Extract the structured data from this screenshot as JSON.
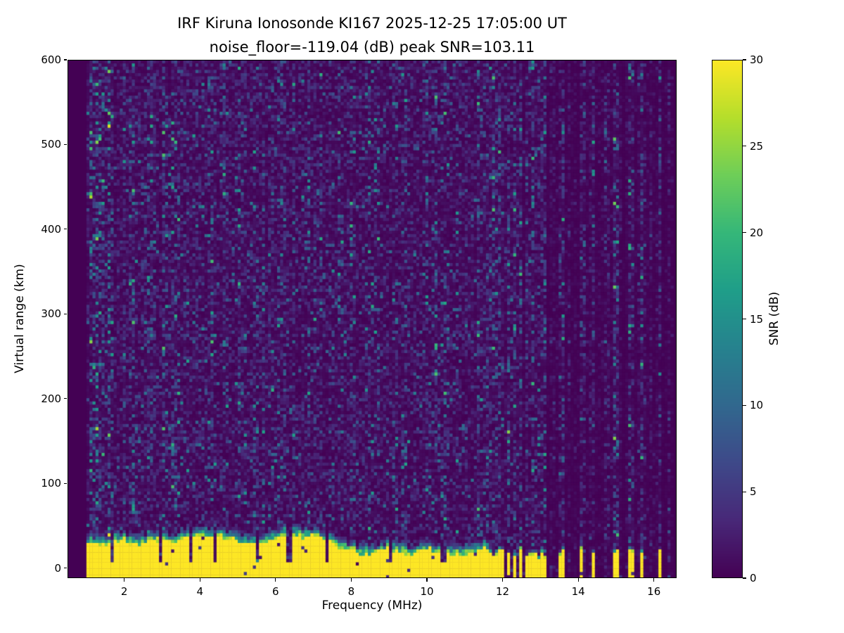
{
  "chart_data": {
    "type": "heatmap",
    "title": "IRF Kiruna Ionosonde KI167 2025-12-25 17:05:00  UT",
    "subtitle": "noise_floor=-119.04 (dB) peak SNR=103.11",
    "station": "IRF Kiruna Ionosonde KI167",
    "timestamp_ut": "2025-12-25 17:05:00 UT",
    "noise_floor_db": -119.04,
    "peak_snr_db": 103.11,
    "xlabel": "Frequency (MHz)",
    "ylabel": "Virtual range (km)",
    "xlim": [
      0.5,
      16.6
    ],
    "ylim": [
      -12,
      600
    ],
    "x_ticks": [
      2,
      4,
      6,
      8,
      10,
      12,
      14,
      16
    ],
    "y_ticks": [
      0,
      100,
      200,
      300,
      400,
      500,
      600
    ],
    "grid": false,
    "colorbar": {
      "label": "SNR (dB)",
      "ticks": [
        0,
        5,
        10,
        15,
        20,
        25,
        30
      ],
      "vmin": 0,
      "vmax": 30
    },
    "colormap": "viridis",
    "colormap_stops": [
      "#440154",
      "#482878",
      "#3e4989",
      "#31688e",
      "#26828e",
      "#1f9e89",
      "#35b779",
      "#6ece58",
      "#b5de2b",
      "#fde725"
    ],
    "background_color": "#440154",
    "sweep_freq_range_mhz": [
      1.0,
      16.45
    ],
    "echo_band": {
      "freq_range_mhz": [
        1.0,
        11.62
      ],
      "range_km": [
        -12,
        35
      ],
      "snr_db": 30,
      "fringe_km": 15
    },
    "band_gap_freqs_mhz": [
      1.62,
      2.9,
      3.7,
      4.35,
      5.5,
      6.32,
      7.35,
      9.0,
      10.4
    ],
    "stripe_freqs_mhz": [
      11.68,
      11.83,
      11.98,
      12.13,
      12.28,
      12.43,
      12.58,
      12.73,
      12.88,
      13.03,
      13.47,
      13.56,
      14.05,
      14.35,
      14.95,
      15.35,
      15.65,
      16.1
    ]
  }
}
